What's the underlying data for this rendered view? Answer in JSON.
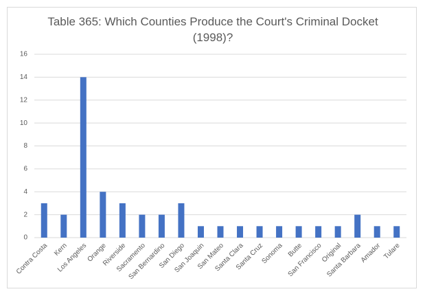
{
  "chart_data": {
    "type": "bar",
    "title": "Table 365: Which Counties Produce the Court's Criminal Docket (1998)?",
    "categories": [
      "Contra Costa",
      "Kern",
      "Los Angeles",
      "Orange",
      "Riverside",
      "Sacramento",
      "San Bernardino",
      "San Diego",
      "San Joaquin",
      "San Mateo",
      "Santa Clara",
      "Santa Cruz",
      "Sonoma",
      "Butte",
      "San Francisco",
      "Original",
      "Santa Barbara",
      "Amador",
      "Tulare"
    ],
    "values": [
      3,
      2,
      14,
      4,
      3,
      2,
      2,
      3,
      1,
      1,
      1,
      1,
      1,
      1,
      1,
      1,
      2,
      1,
      1
    ],
    "color": "#4472c4",
    "ylim": [
      0,
      16
    ],
    "yticks": [
      0,
      2,
      4,
      6,
      8,
      10,
      12,
      14,
      16
    ],
    "grid": true
  }
}
